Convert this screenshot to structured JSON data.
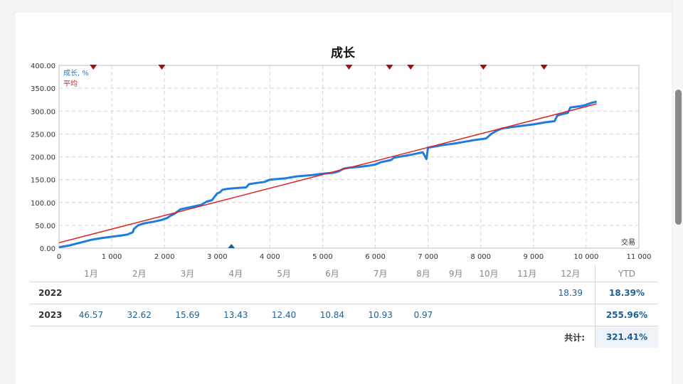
{
  "chart_data": {
    "type": "line",
    "title": "成长",
    "xlabel": "交易",
    "ylabel": "",
    "xlim": [
      0,
      11000
    ],
    "ylim": [
      0,
      400
    ],
    "x_ticks": [
      "0",
      "1 000",
      "2 000",
      "3 000",
      "4 000",
      "5 000",
      "6 000",
      "7 000",
      "8 000",
      "9 000",
      "10 000",
      "11 000"
    ],
    "y_ticks": [
      "0.00",
      "50.00",
      "100.00",
      "150.00",
      "200.00",
      "250.00",
      "300.00",
      "350.00",
      "400.00"
    ],
    "grid": true,
    "legend_position": "top-left",
    "series": [
      {
        "name": "成长, %",
        "color": "#1e7be0",
        "x": [
          0,
          200,
          400,
          600,
          800,
          1000,
          1200,
          1300,
          1400,
          1420,
          1500,
          1600,
          1800,
          1950,
          2050,
          2100,
          2200,
          2300,
          2500,
          2700,
          2800,
          2900,
          3000,
          3050,
          3100,
          3200,
          3400,
          3550,
          3600,
          3700,
          3900,
          4000,
          4300,
          4500,
          4800,
          5000,
          5200,
          5300,
          5400,
          5500,
          5700,
          5900,
          6000,
          6100,
          6300,
          6350,
          6500,
          6700,
          6900,
          6970,
          6990,
          7000,
          7100,
          7300,
          7500,
          7700,
          7900,
          8100,
          8150,
          8200,
          8300,
          8400,
          8600,
          8800,
          9000,
          9200,
          9400,
          9450,
          9500,
          9600,
          9650,
          9700,
          9900,
          10000,
          10100,
          10200
        ],
        "y": [
          2,
          6,
          12,
          18,
          22,
          25,
          28,
          30,
          35,
          42,
          50,
          54,
          58,
          62,
          66,
          70,
          76,
          85,
          90,
          95,
          102,
          105,
          120,
          122,
          128,
          130,
          132,
          133,
          140,
          142,
          145,
          150,
          153,
          157,
          160,
          163,
          165,
          168,
          174,
          176,
          178,
          181,
          183,
          188,
          193,
          198,
          201,
          205,
          210,
          195,
          212,
          220,
          222,
          226,
          229,
          233,
          237,
          240,
          245,
          250,
          257,
          262,
          265,
          268,
          271,
          275,
          278,
          290,
          292,
          295,
          296,
          308,
          311,
          314,
          318,
          321
        ]
      },
      {
        "name": "平均",
        "color": "#dd2222",
        "x": [
          0,
          10200
        ],
        "y": [
          12,
          316
        ]
      }
    ],
    "top_markers_x": [
      650,
      1950,
      5500,
      6270,
      6670,
      8050,
      9200
    ],
    "bottom_markers_x": [
      3270
    ]
  },
  "table": {
    "months": [
      "1月",
      "2月",
      "3月",
      "4月",
      "5月",
      "6月",
      "7月",
      "8月",
      "9月",
      "10月",
      "11月",
      "12月"
    ],
    "ytd_header": "YTD",
    "rows": [
      {
        "year": "2022",
        "values": [
          "",
          "",
          "",
          "",
          "",
          "",
          "",
          "",
          "",
          "",
          "",
          "18.39"
        ],
        "ytd": "18.39%"
      },
      {
        "year": "2023",
        "values": [
          "46.57",
          "32.62",
          "15.69",
          "13.43",
          "12.40",
          "10.84",
          "10.93",
          "0.97",
          "",
          "",
          "",
          ""
        ],
        "ytd": "255.96%"
      }
    ],
    "total_label": "共计:",
    "total_value": "321.41%"
  }
}
